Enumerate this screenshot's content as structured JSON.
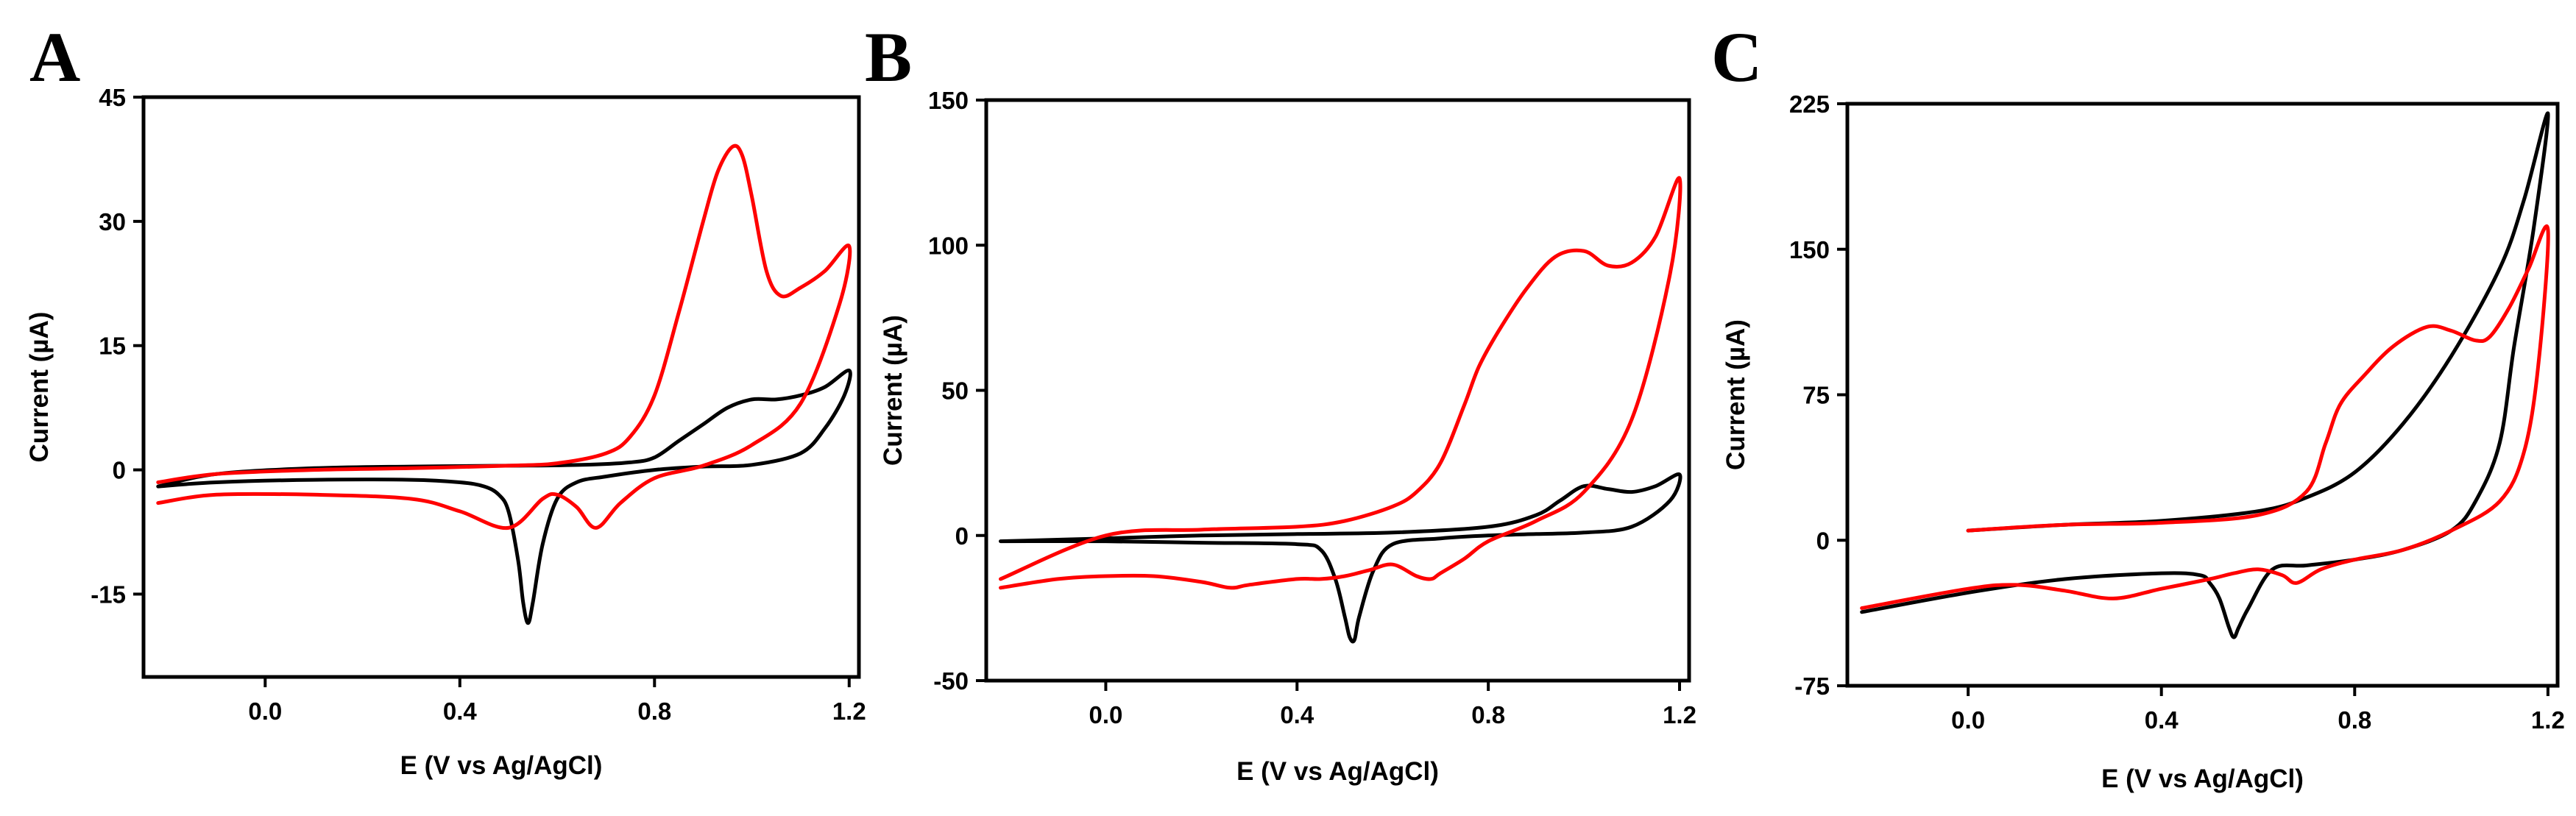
{
  "colors": {
    "red": "#ff0000",
    "black": "#000000",
    "frame": "#000000"
  },
  "chart_data": [
    {
      "panel_label": "A",
      "type": "line",
      "xlabel": "E (V vs Ag/AgCl)",
      "ylabel": "Current (µA)",
      "xlim": [
        -0.25,
        1.22
      ],
      "ylim": [
        -25,
        45
      ],
      "xticks": [
        0.0,
        0.4,
        0.8,
        1.2
      ],
      "xtick_labels": [
        "0.0",
        "0.4",
        "0.8",
        "1.2"
      ],
      "yticks": [
        -15,
        0,
        15,
        30,
        45
      ],
      "ytick_labels": [
        "-15",
        "0",
        "15",
        "30",
        "45"
      ],
      "series": [
        {
          "name": "black",
          "color": "#000000",
          "x": [
            -0.22,
            -0.1,
            0.1,
            0.3,
            0.5,
            0.65,
            0.75,
            0.8,
            0.85,
            0.9,
            0.95,
            1.0,
            1.05,
            1.1,
            1.15,
            1.2,
            1.19,
            1.15,
            1.1,
            1.0,
            0.9,
            0.8,
            0.7,
            0.64,
            0.6,
            0.57,
            0.55,
            0.54,
            0.53,
            0.52,
            0.5,
            0.48,
            0.45,
            0.4,
            0.3,
            0.1,
            -0.1,
            -0.22
          ],
          "y": [
            -2,
            -0.5,
            0.2,
            0.4,
            0.5,
            0.6,
            0.9,
            1.5,
            3.5,
            5.5,
            7.5,
            8.5,
            8.5,
            9,
            10,
            12,
            9,
            5,
            2,
            0.6,
            0.4,
            0,
            -0.8,
            -1.5,
            -3.5,
            -9,
            -16,
            -18.5,
            -16,
            -11,
            -5,
            -3,
            -2,
            -1.5,
            -1.2,
            -1.2,
            -1.5,
            -2
          ]
        },
        {
          "name": "red",
          "color": "#ff0000",
          "x": [
            -0.22,
            -0.1,
            0.1,
            0.3,
            0.5,
            0.6,
            0.7,
            0.75,
            0.8,
            0.85,
            0.9,
            0.93,
            0.96,
            0.98,
            1.0,
            1.03,
            1.06,
            1.1,
            1.15,
            1.2,
            1.18,
            1.1,
            1.0,
            0.9,
            0.8,
            0.73,
            0.68,
            0.64,
            0.6,
            0.57,
            0.5,
            0.4,
            0.3,
            0.1,
            -0.1,
            -0.22
          ],
          "y": [
            -1.5,
            -0.5,
            0,
            0.2,
            0.5,
            0.8,
            2,
            4,
            9,
            19,
            30,
            36,
            39,
            38,
            33,
            24,
            21,
            22,
            24,
            27,
            20,
            8,
            3,
            0.5,
            -1,
            -4,
            -7,
            -4.5,
            -3,
            -3.5,
            -7,
            -5,
            -3.5,
            -3,
            -3,
            -4
          ]
        }
      ]
    },
    {
      "panel_label": "B",
      "type": "line",
      "xlabel": "E (V vs Ag/AgCl)",
      "ylabel": "Current (µA)",
      "xlim": [
        -0.25,
        1.22
      ],
      "ylim": [
        -50,
        150
      ],
      "xticks": [
        0.0,
        0.4,
        0.8,
        1.2
      ],
      "xtick_labels": [
        "0.0",
        "0.4",
        "0.8",
        "1.2"
      ],
      "yticks": [
        -50,
        0,
        50,
        100,
        150
      ],
      "ytick_labels": [
        "-50",
        "0",
        "50",
        "100",
        "150"
      ],
      "series": [
        {
          "name": "black",
          "color": "#000000",
          "x": [
            -0.22,
            0.0,
            0.2,
            0.4,
            0.6,
            0.8,
            0.9,
            0.95,
            1.0,
            1.05,
            1.1,
            1.15,
            1.2,
            1.18,
            1.1,
            1.0,
            0.9,
            0.8,
            0.7,
            0.6,
            0.56,
            0.53,
            0.52,
            0.51,
            0.5,
            0.48,
            0.45,
            0.4,
            0.2,
            0.0,
            -0.22
          ],
          "y": [
            -2,
            -1,
            0,
            0.5,
            1,
            3,
            7,
            12,
            17,
            16,
            15,
            17,
            21,
            12,
            3,
            1,
            0.5,
            0,
            -1,
            -3,
            -12,
            -28,
            -36,
            -35,
            -28,
            -15,
            -5,
            -3,
            -2.5,
            -2,
            -2
          ]
        },
        {
          "name": "red",
          "color": "#ff0000",
          "x": [
            -0.22,
            0.0,
            0.2,
            0.4,
            0.5,
            0.6,
            0.65,
            0.7,
            0.75,
            0.78,
            0.82,
            0.88,
            0.94,
            1.0,
            1.05,
            1.1,
            1.15,
            1.2,
            1.18,
            1.1,
            1.0,
            0.9,
            0.8,
            0.75,
            0.7,
            0.68,
            0.65,
            0.6,
            0.55,
            0.5,
            0.45,
            0.4,
            0.3,
            0.26,
            0.2,
            0.1,
            0.0,
            -0.1,
            -0.22
          ],
          "y": [
            -15,
            0,
            2,
            3,
            5,
            10,
            15,
            25,
            45,
            58,
            70,
            85,
            96,
            98,
            93,
            94,
            103,
            123,
            90,
            40,
            15,
            5,
            -2,
            -8,
            -13,
            -15,
            -14,
            -10,
            -12,
            -14,
            -15,
            -15,
            -17,
            -18,
            -16,
            -14,
            -14,
            -15,
            -18
          ]
        }
      ]
    },
    {
      "panel_label": "C",
      "type": "line",
      "xlabel": "E (V vs Ag/AgCl)",
      "ylabel": "Current (µA)",
      "xlim": [
        -0.25,
        1.22
      ],
      "ylim": [
        -75,
        225
      ],
      "xticks": [
        0.0,
        0.4,
        0.8,
        1.2
      ],
      "xtick_labels": [
        "0.0",
        "0.4",
        "0.8",
        "1.2"
      ],
      "yticks": [
        -75,
        0,
        75,
        150,
        225
      ],
      "ytick_labels": [
        "-75",
        "0",
        "75",
        "150",
        "225"
      ],
      "series": [
        {
          "name": "black",
          "color": "#000000",
          "x": [
            0.0,
            0.2,
            0.4,
            0.6,
            0.7,
            0.8,
            0.9,
            1.0,
            1.1,
            1.15,
            1.2,
            1.17,
            1.13,
            1.1,
            1.05,
            1.0,
            0.9,
            0.8,
            0.7,
            0.63,
            0.58,
            0.56,
            0.55,
            0.54,
            0.52,
            0.5,
            0.48,
            0.4,
            0.2,
            0.0,
            -0.22
          ],
          "y": [
            5,
            8,
            10,
            15,
            22,
            35,
            60,
            95,
            140,
            175,
            220,
            160,
            100,
            50,
            20,
            5,
            -5,
            -10,
            -13,
            -15,
            -35,
            -45,
            -50,
            -45,
            -30,
            -22,
            -18,
            -17,
            -20,
            -27,
            -37
          ]
        },
        {
          "name": "red",
          "color": "#ff0000",
          "x": [
            0.0,
            0.2,
            0.4,
            0.6,
            0.7,
            0.74,
            0.77,
            0.82,
            0.88,
            0.95,
            1.0,
            1.05,
            1.08,
            1.12,
            1.16,
            1.2,
            1.18,
            1.15,
            1.1,
            1.0,
            0.9,
            0.8,
            0.73,
            0.68,
            0.65,
            0.6,
            0.55,
            0.5,
            0.4,
            0.3,
            0.2,
            0.1,
            0.0,
            -0.22
          ],
          "y": [
            5,
            8,
            9,
            13,
            25,
            50,
            70,
            85,
            100,
            110,
            108,
            103,
            105,
            120,
            140,
            160,
            90,
            45,
            20,
            5,
            -5,
            -10,
            -15,
            -22,
            -18,
            -15,
            -17,
            -20,
            -25,
            -30,
            -26,
            -23,
            -25,
            -35
          ]
        }
      ]
    }
  ]
}
